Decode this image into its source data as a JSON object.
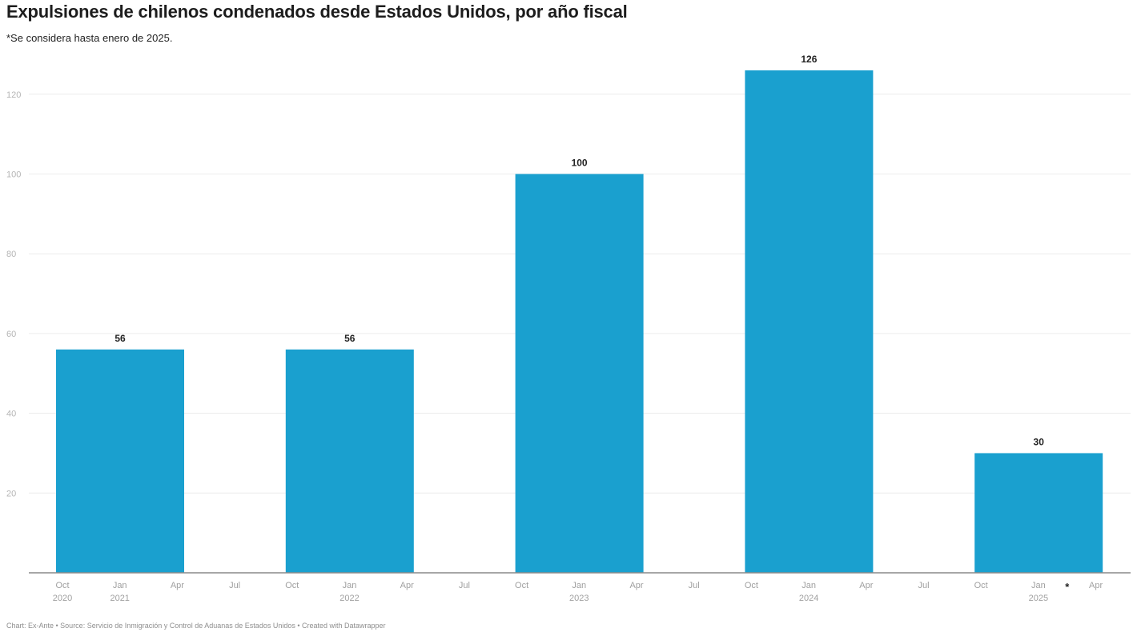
{
  "chart_data": {
    "type": "bar",
    "title": "Expulsiones de chilenos condenados desde Estados Unidos, por año fiscal",
    "subtitle": "*Se considera hasta enero de 2025.",
    "categories": [
      "2021",
      "2022",
      "2023",
      "2024",
      "2025"
    ],
    "values": [
      56,
      56,
      100,
      126,
      30
    ],
    "ylim": [
      0,
      130
    ],
    "y_ticks": [
      20,
      40,
      60,
      80,
      100,
      120
    ],
    "grid": true,
    "bar_color": "#1aa0cf",
    "x_axis_ticks": [
      {
        "label": "Oct",
        "sub": "2020"
      },
      {
        "label": "Jan",
        "sub": "2021"
      },
      {
        "label": "Apr",
        "sub": ""
      },
      {
        "label": "Jul",
        "sub": ""
      },
      {
        "label": "Oct",
        "sub": ""
      },
      {
        "label": "Jan",
        "sub": "2022"
      },
      {
        "label": "Apr",
        "sub": ""
      },
      {
        "label": "Jul",
        "sub": ""
      },
      {
        "label": "Oct",
        "sub": ""
      },
      {
        "label": "Jan",
        "sub": "2023"
      },
      {
        "label": "Apr",
        "sub": ""
      },
      {
        "label": "Jul",
        "sub": ""
      },
      {
        "label": "Oct",
        "sub": ""
      },
      {
        "label": "Jan",
        "sub": "2024"
      },
      {
        "label": "Apr",
        "sub": ""
      },
      {
        "label": "Jul",
        "sub": ""
      },
      {
        "label": "Oct",
        "sub": ""
      },
      {
        "label": "Jan",
        "sub": "2025"
      },
      {
        "label": "Apr",
        "sub": ""
      }
    ],
    "annotation": "*",
    "footer": "Chart: Ex-Ante • Source: Servicio de Inmigración y Control de Aduanas de Estados Unidos • Created with Datawrapper"
  }
}
